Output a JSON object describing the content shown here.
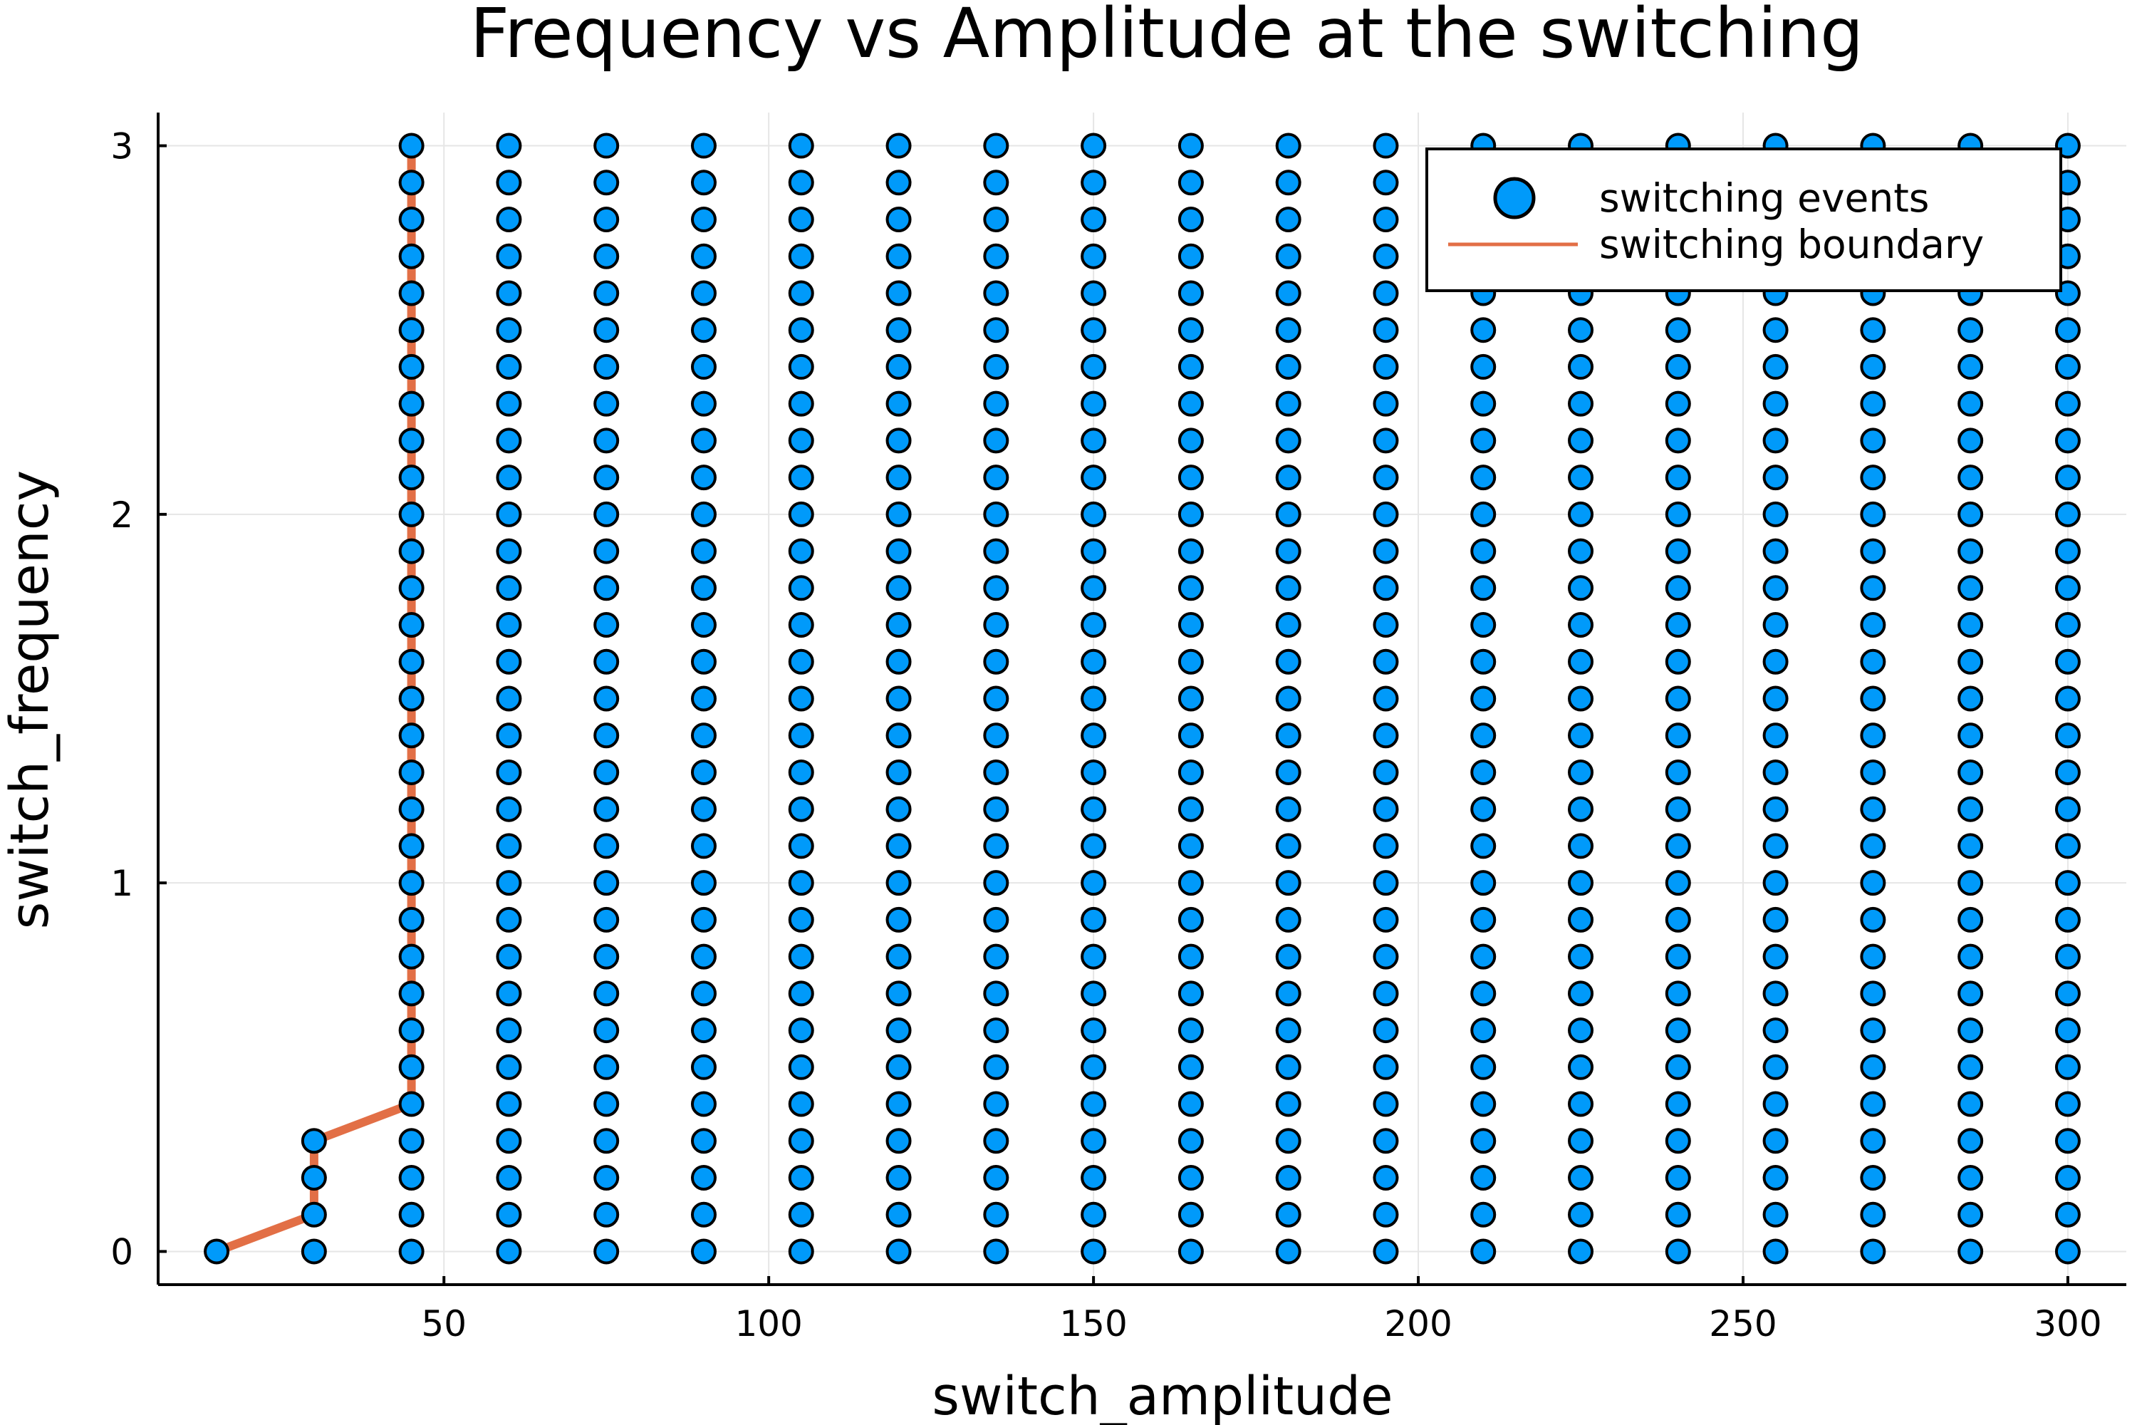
{
  "chart_data": {
    "type": "scatter",
    "title": "Frequency vs Amplitude at the switching",
    "xlabel": "switch_amplitude",
    "ylabel": "switch_frequency",
    "xlim": [
      6,
      309
    ],
    "ylim": [
      -0.09,
      3.09
    ],
    "x_ticks": [
      50,
      100,
      150,
      200,
      250,
      300
    ],
    "y_ticks": [
      0,
      1,
      2,
      3
    ],
    "grid": true,
    "legend_position": "top-right",
    "colors": {
      "scatter": "#009AFA",
      "line": "#E26F46"
    },
    "series": [
      {
        "name": "switching events",
        "kind": "scatter",
        "points": [
          {
            "x": 15,
            "y": 0
          },
          {
            "x": 30,
            "y": 0
          },
          {
            "x": 30,
            "y": 0.1
          },
          {
            "x": 30,
            "y": 0.2
          },
          {
            "x": 30,
            "y": 0.3
          },
          {
            "x_values": [
              45,
              60,
              75,
              90,
              105,
              120,
              135,
              150,
              165,
              180,
              195,
              210,
              225,
              240,
              255,
              270,
              285,
              300
            ],
            "y_from": 0,
            "y_to": 3,
            "y_step": 0.1
          }
        ]
      },
      {
        "name": "switching boundary",
        "kind": "line",
        "x": [
          15,
          30,
          30,
          45,
          45
        ],
        "y": [
          0,
          0.1,
          0.3,
          0.4,
          3
        ]
      }
    ]
  }
}
